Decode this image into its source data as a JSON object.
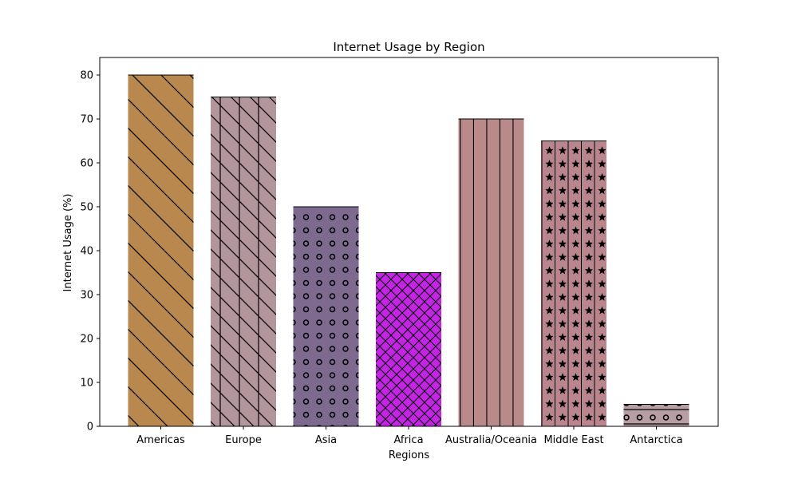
{
  "chart_data": {
    "type": "bar",
    "title": "Internet Usage by Region",
    "xlabel": "Regions",
    "ylabel": "Internet Usage (%)",
    "categories": [
      "Americas",
      "Europe",
      "Asia",
      "Africa",
      "Australia/Oceania",
      "Middle East",
      "Antarctica"
    ],
    "values": [
      80,
      75,
      50,
      35,
      70,
      65,
      5
    ],
    "colors": [
      "#b8884f",
      "#b3959c",
      "#7d6a8e",
      "#c424e3",
      "#b98a8a",
      "#b9868e",
      "#b69ea2"
    ],
    "hatches": [
      "diagonal-back",
      "diagonal-vertical",
      "circles",
      "crosshatch",
      "vertical",
      "stars",
      "horizontal-circles"
    ],
    "ylim": [
      0,
      84
    ],
    "yticks": [
      0,
      10,
      20,
      30,
      40,
      50,
      60,
      70,
      80
    ],
    "grid": false,
    "legend": "none"
  }
}
